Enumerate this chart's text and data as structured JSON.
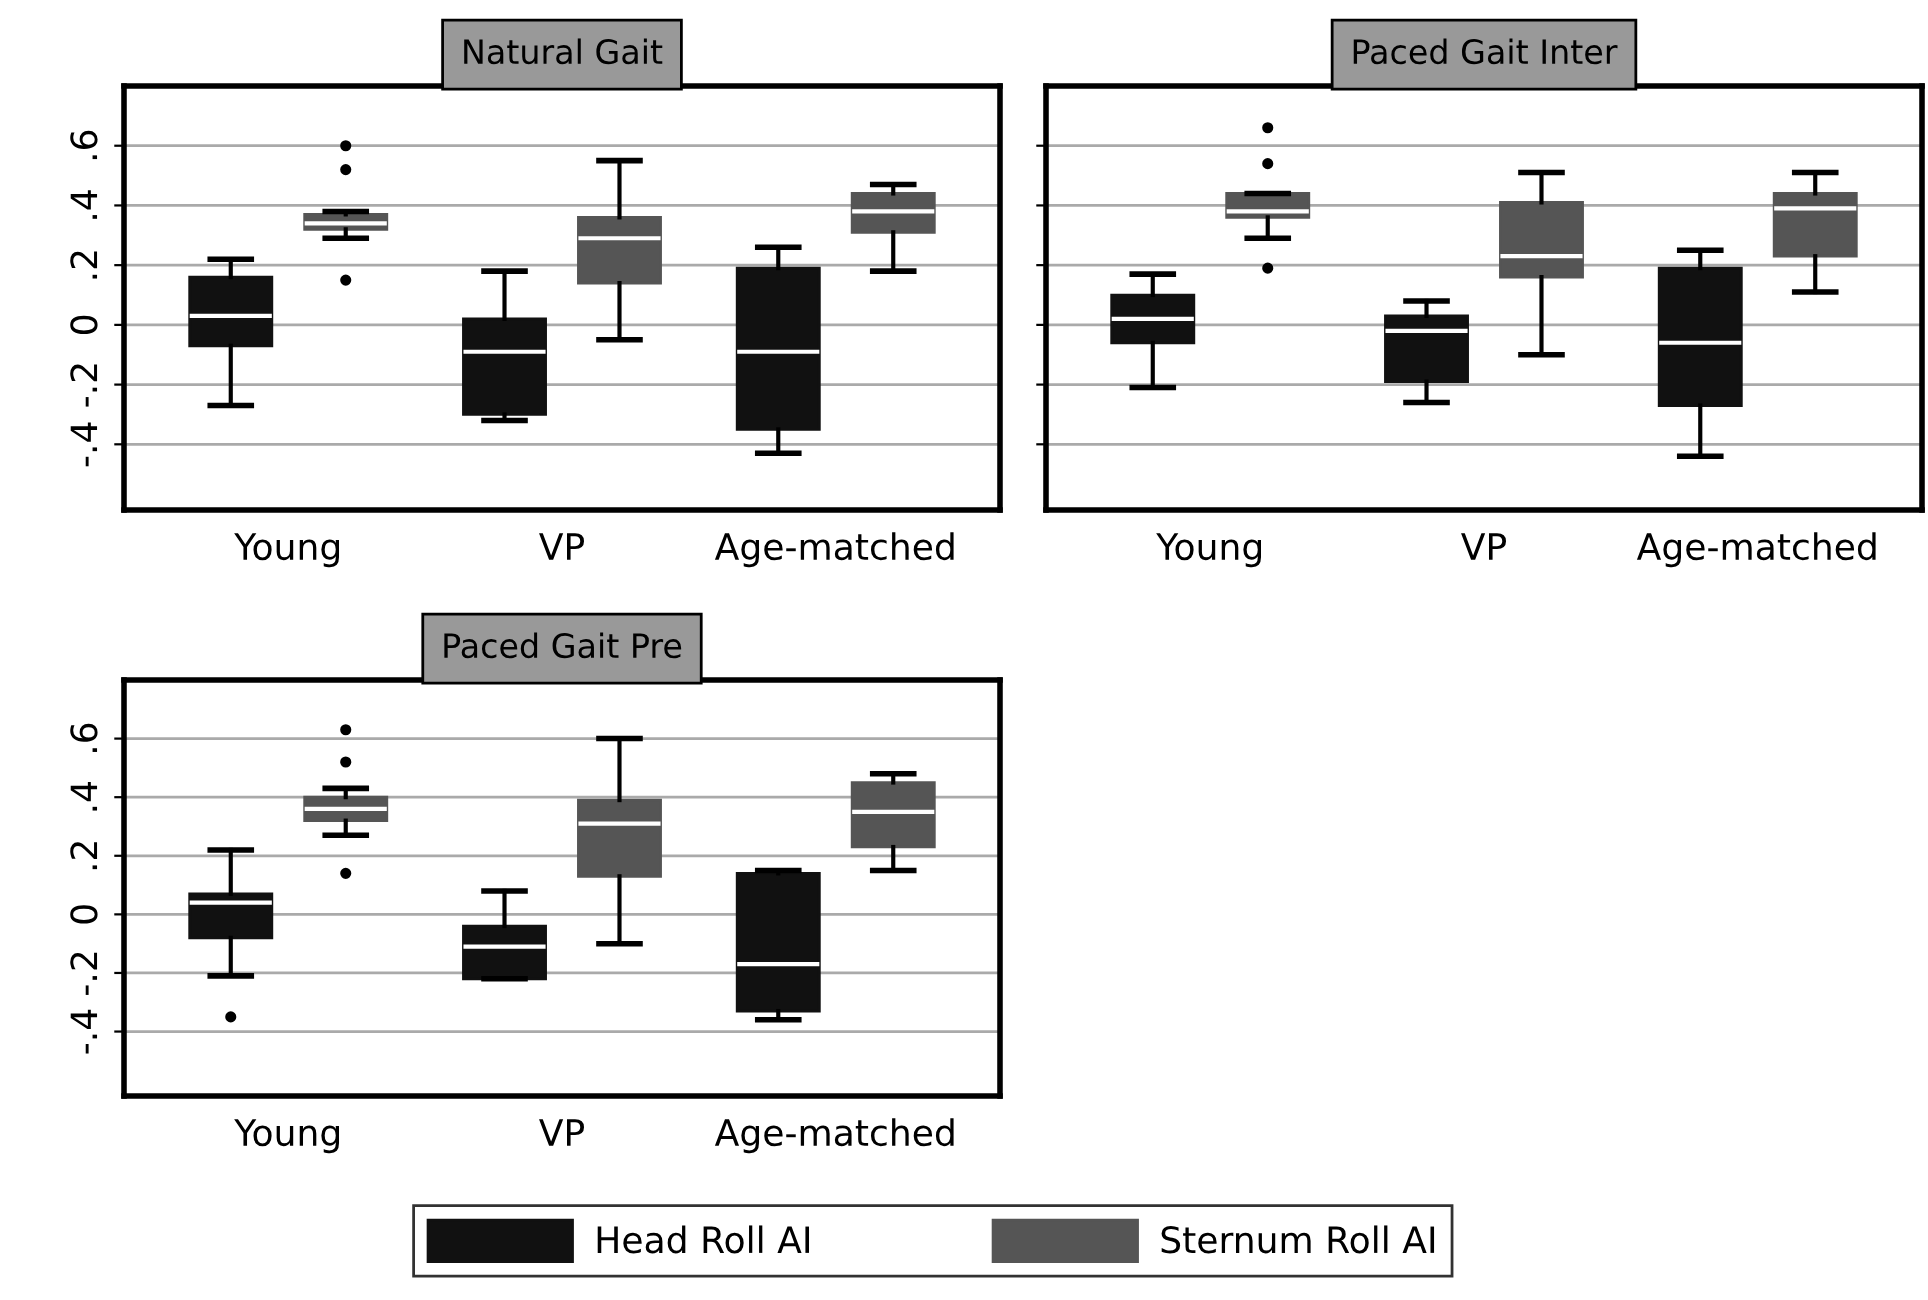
{
  "chart_data": [
    {
      "type": "box",
      "title": "Natural Gait",
      "categories": [
        "Young",
        "VP",
        "Age-matched"
      ],
      "ylim": [
        -0.62,
        0.8
      ],
      "yticks": [
        {
          "value": -0.4,
          "label": "-.4"
        },
        {
          "value": -0.2,
          "label": "-.2"
        },
        {
          "value": 0,
          "label": "0"
        },
        {
          "value": 0.2,
          "label": ".2"
        },
        {
          "value": 0.4,
          "label": ".4"
        },
        {
          "value": 0.6,
          "label": ".6"
        }
      ],
      "grid": "y",
      "series": [
        {
          "color": "#111111",
          "boxes": [
            {
              "low": -0.27,
              "q1": -0.07,
              "median": 0.03,
              "q3": 0.16,
              "high": 0.22
            },
            {
              "low": -0.32,
              "q1": -0.3,
              "median": -0.09,
              "q3": 0.02,
              "high": 0.18
            },
            {
              "low": -0.43,
              "q1": -0.35,
              "median": -0.09,
              "q3": 0.19,
              "high": 0.26
            }
          ]
        },
        {
          "color": "#555555",
          "boxes": [
            {
              "low": 0.29,
              "q1": 0.32,
              "median": 0.34,
              "q3": 0.37,
              "high": 0.38,
              "outliers": [
                0.6,
                0.52,
                0.15
              ]
            },
            {
              "low": -0.05,
              "q1": 0.14,
              "median": 0.29,
              "q3": 0.36,
              "high": 0.55
            },
            {
              "low": 0.18,
              "q1": 0.31,
              "median": 0.38,
              "q3": 0.44,
              "high": 0.47
            }
          ]
        }
      ]
    },
    {
      "type": "box",
      "title": "Paced Gait Inter",
      "categories": [
        "Young",
        "VP",
        "Age-matched"
      ],
      "ylim": [
        -0.62,
        0.8
      ],
      "yticks": [
        {
          "value": -0.4,
          "label": null
        },
        {
          "value": -0.2,
          "label": null
        },
        {
          "value": 0,
          "label": null
        },
        {
          "value": 0.2,
          "label": null
        },
        {
          "value": 0.4,
          "label": null
        },
        {
          "value": 0.6,
          "label": null
        }
      ],
      "grid": "y",
      "tick_labels": "x",
      "series": [
        {
          "color": "#111111",
          "boxes": [
            {
              "low": -0.21,
              "q1": -0.06,
              "median": 0.02,
              "q3": 0.1,
              "high": 0.17
            },
            {
              "low": -0.26,
              "q1": -0.19,
              "median": -0.02,
              "q3": 0.03,
              "high": 0.08
            },
            {
              "low": -0.44,
              "q1": -0.27,
              "median": -0.06,
              "q3": 0.19,
              "high": 0.25
            }
          ]
        },
        {
          "color": "#555555",
          "boxes": [
            {
              "low": 0.29,
              "q1": 0.36,
              "median": 0.38,
              "q3": 0.44,
              "high": 0.44,
              "outliers": [
                0.66,
                0.54,
                0.19
              ]
            },
            {
              "low": -0.1,
              "q1": 0.16,
              "median": 0.23,
              "q3": 0.41,
              "high": 0.51
            },
            {
              "low": 0.11,
              "q1": 0.23,
              "median": 0.39,
              "q3": 0.44,
              "high": 0.51
            }
          ]
        }
      ]
    },
    {
      "type": "box",
      "title": "Paced Gait Pre",
      "categories": [
        "Young",
        "VP",
        "Age-matched"
      ],
      "ylim": [
        -0.62,
        0.8
      ],
      "yticks": [
        {
          "value": -0.4,
          "label": "-.4"
        },
        {
          "value": -0.2,
          "label": "-.2"
        },
        {
          "value": 0,
          "label": "0"
        },
        {
          "value": 0.2,
          "label": ".2"
        },
        {
          "value": 0.4,
          "label": ".4"
        },
        {
          "value": 0.6,
          "label": ".6"
        }
      ],
      "grid": "y",
      "legend": "bottom",
      "series": [
        {
          "name": "Head Roll AI",
          "color": "#111111",
          "boxes": [
            {
              "low": -0.21,
              "q1": -0.08,
              "median": 0.04,
              "q3": 0.07,
              "high": 0.22,
              "outliers": [
                -0.35
              ]
            },
            {
              "low": -0.22,
              "q1": -0.22,
              "median": -0.11,
              "q3": -0.04,
              "high": 0.08
            },
            {
              "low": -0.36,
              "q1": -0.33,
              "median": -0.17,
              "q3": 0.14,
              "high": 0.15
            }
          ]
        },
        {
          "name": "Sternum Roll AI",
          "color": "#555555",
          "boxes": [
            {
              "low": 0.27,
              "q1": 0.32,
              "median": 0.36,
              "q3": 0.4,
              "high": 0.43,
              "outliers": [
                0.63,
                0.52,
                0.14
              ]
            },
            {
              "low": -0.1,
              "q1": 0.13,
              "median": 0.31,
              "q3": 0.39,
              "high": 0.6
            },
            {
              "low": 0.15,
              "q1": 0.23,
              "median": 0.35,
              "q3": 0.45,
              "high": 0.48
            }
          ]
        }
      ]
    }
  ]
}
